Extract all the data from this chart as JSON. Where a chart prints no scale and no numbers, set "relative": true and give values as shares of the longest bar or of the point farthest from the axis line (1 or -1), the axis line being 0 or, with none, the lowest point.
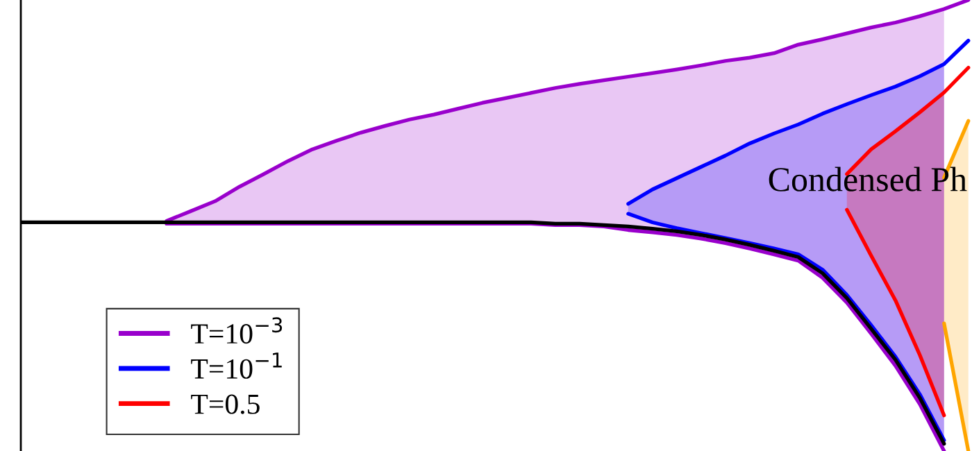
{
  "chart_data": {
    "type": "line",
    "categories": [
      null,
      null,
      null,
      null,
      null,
      null,
      null,
      null,
      null,
      null,
      null,
      null,
      null,
      null,
      null,
      null,
      null,
      null,
      null,
      null,
      null,
      null,
      null,
      null,
      null,
      null,
      null,
      null,
      null,
      null,
      null,
      null,
      null,
      null,
      null,
      null,
      null,
      null,
      null,
      null
    ],
    "relative": true,
    "series": [
      {
        "name": "T=10$^{−3}$",
        "color": "#9900cc",
        "values": [
          null,
          null,
          null,
          null,
          null,
          null,
          0.51,
          0.532,
          0.554,
          0.586,
          0.614,
          0.643,
          0.669,
          0.688,
          0.706,
          0.721,
          0.735,
          0.746,
          0.759,
          0.772,
          0.783,
          0.794,
          0.805,
          0.814,
          0.822,
          0.83,
          0.838,
          0.846,
          0.855,
          0.865,
          0.872,
          0.882,
          0.901,
          0.913,
          0.926,
          0.939,
          0.95,
          0.964,
          0.98,
          1.0
        ],
        "upper": [
          null,
          null,
          null,
          null,
          null,
          null,
          0.51,
          0.532,
          0.554,
          0.586,
          0.614,
          0.643,
          0.669,
          0.688,
          0.706,
          0.721,
          0.735,
          0.746,
          0.759,
          0.772,
          0.783,
          0.794,
          0.805,
          0.814,
          0.822,
          0.83,
          0.838,
          0.846,
          0.855,
          0.865,
          0.872,
          0.882,
          0.901,
          0.913,
          0.926,
          0.939,
          0.95,
          0.964,
          0.98,
          null
        ],
        "lower": [
          null,
          null,
          null,
          null,
          null,
          null,
          0.504,
          0.504,
          0.504,
          0.504,
          0.504,
          0.504,
          0.504,
          0.504,
          0.504,
          0.504,
          0.504,
          0.504,
          0.504,
          0.504,
          0.504,
          0.504,
          0.501,
          0.501,
          0.498,
          0.49,
          0.485,
          0.479,
          0.471,
          0.461,
          0.449,
          0.436,
          0.422,
          0.384,
          0.329,
          0.26,
          0.189,
          0.104,
          0.0,
          null
        ]
      },
      {
        "color": "#9900cc",
        "values": [
          null,
          null,
          null,
          null,
          null,
          null,
          0.504,
          0.504,
          0.504,
          0.504,
          0.504,
          0.504,
          0.504,
          0.504,
          0.504,
          0.504,
          0.504,
          0.504,
          0.504,
          0.504,
          0.504,
          0.504,
          0.501,
          0.501,
          0.498,
          0.49,
          0.485,
          0.479,
          0.471,
          0.461,
          0.449,
          0.436,
          0.422,
          0.384,
          0.329,
          0.26,
          0.189,
          0.104,
          0.0,
          null
        ]
      },
      {
        "name": "T=10$^{−1}$",
        "color": "#0000ff",
        "values": [
          null,
          null,
          null,
          null,
          null,
          null,
          null,
          null,
          null,
          null,
          null,
          null,
          null,
          null,
          null,
          null,
          null,
          null,
          null,
          null,
          null,
          null,
          null,
          null,
          null,
          0.548,
          0.58,
          0.605,
          0.63,
          0.655,
          0.682,
          0.704,
          0.724,
          0.748,
          0.769,
          0.789,
          0.808,
          0.831,
          0.858,
          0.91
        ],
        "upper": [
          null,
          null,
          null,
          null,
          null,
          null,
          null,
          null,
          null,
          null,
          null,
          null,
          null,
          null,
          null,
          null,
          null,
          null,
          null,
          null,
          null,
          null,
          null,
          null,
          null,
          0.548,
          0.58,
          0.605,
          0.63,
          0.655,
          0.682,
          0.704,
          0.724,
          0.748,
          0.769,
          0.789,
          0.808,
          0.831,
          0.858,
          null
        ],
        "lower": [
          null,
          null,
          null,
          null,
          null,
          null,
          null,
          null,
          null,
          null,
          null,
          null,
          null,
          null,
          null,
          null,
          null,
          null,
          null,
          null,
          null,
          null,
          null,
          null,
          null,
          0.526,
          0.507,
          0.494,
          0.483,
          0.472,
          0.461,
          0.449,
          0.436,
          0.402,
          0.346,
          0.279,
          0.209,
          0.126,
          0.024,
          null
        ]
      },
      {
        "color": "#0000ff",
        "values": [
          null,
          null,
          null,
          null,
          null,
          null,
          null,
          null,
          null,
          null,
          null,
          null,
          null,
          null,
          null,
          null,
          null,
          null,
          null,
          null,
          null,
          null,
          null,
          null,
          null,
          0.526,
          0.507,
          0.494,
          0.483,
          0.472,
          0.461,
          0.449,
          0.436,
          0.402,
          0.346,
          0.279,
          0.209,
          0.126,
          0.024,
          null
        ]
      },
      {
        "name": "T=0.5",
        "color": "#ff0000",
        "values": [
          null,
          null,
          null,
          null,
          null,
          null,
          null,
          null,
          null,
          null,
          null,
          null,
          null,
          null,
          null,
          null,
          null,
          null,
          null,
          null,
          null,
          null,
          null,
          null,
          null,
          null,
          null,
          null,
          null,
          null,
          null,
          null,
          null,
          null,
          0.614,
          0.669,
          0.709,
          0.751,
          0.795,
          0.85
        ],
        "upper": [
          null,
          null,
          null,
          null,
          null,
          null,
          null,
          null,
          null,
          null,
          null,
          null,
          null,
          null,
          null,
          null,
          null,
          null,
          null,
          null,
          null,
          null,
          null,
          null,
          null,
          null,
          null,
          null,
          null,
          null,
          null,
          null,
          null,
          null,
          0.614,
          0.669,
          0.709,
          0.751,
          0.795,
          null
        ],
        "lower": [
          null,
          null,
          null,
          null,
          null,
          null,
          null,
          null,
          null,
          null,
          null,
          null,
          null,
          null,
          null,
          null,
          null,
          null,
          null,
          null,
          null,
          null,
          null,
          null,
          null,
          null,
          null,
          null,
          null,
          null,
          null,
          null,
          null,
          null,
          0.535,
          0.433,
          0.334,
          0.213,
          0.079,
          null
        ]
      },
      {
        "color": "#ff0000",
        "values": [
          null,
          null,
          null,
          null,
          null,
          null,
          null,
          null,
          null,
          null,
          null,
          null,
          null,
          null,
          null,
          null,
          null,
          null,
          null,
          null,
          null,
          null,
          null,
          null,
          null,
          null,
          null,
          null,
          null,
          null,
          null,
          null,
          null,
          null,
          0.535,
          0.433,
          0.334,
          0.213,
          0.079,
          null
        ]
      },
      {
        "color": "#ffa500",
        "values": [
          null,
          null,
          null,
          null,
          null,
          null,
          null,
          null,
          null,
          null,
          null,
          null,
          null,
          null,
          null,
          null,
          null,
          null,
          null,
          null,
          null,
          null,
          null,
          null,
          null,
          null,
          null,
          null,
          null,
          null,
          null,
          null,
          null,
          null,
          null,
          null,
          null,
          null,
          0.606,
          0.732
        ],
        "upper": [
          null,
          null,
          null,
          null,
          null,
          null,
          null,
          null,
          null,
          null,
          null,
          null,
          null,
          null,
          null,
          null,
          null,
          null,
          null,
          null,
          null,
          null,
          null,
          null,
          null,
          null,
          null,
          null,
          null,
          null,
          null,
          null,
          null,
          null,
          null,
          null,
          null,
          null,
          0.606,
          0.732
        ],
        "lower": [
          null,
          null,
          null,
          null,
          null,
          null,
          null,
          null,
          null,
          null,
          null,
          null,
          null,
          null,
          null,
          null,
          null,
          null,
          null,
          null,
          null,
          null,
          null,
          null,
          null,
          null,
          null,
          null,
          null,
          null,
          null,
          null,
          null,
          null,
          null,
          null,
          null,
          null,
          0.283,
          0.0
        ]
      },
      {
        "color": "#ffa500",
        "values": [
          null,
          null,
          null,
          null,
          null,
          null,
          null,
          null,
          null,
          null,
          null,
          null,
          null,
          null,
          null,
          null,
          null,
          null,
          null,
          null,
          null,
          null,
          null,
          null,
          null,
          null,
          null,
          null,
          null,
          null,
          null,
          null,
          null,
          null,
          null,
          null,
          null,
          null,
          0.283,
          0.0
        ]
      },
      {
        "color": "#000000",
        "values": [
          0.507,
          0.507,
          0.507,
          0.507,
          0.507,
          0.507,
          0.507,
          0.507,
          0.507,
          0.507,
          0.507,
          0.507,
          0.507,
          0.507,
          0.507,
          0.507,
          0.507,
          0.507,
          0.507,
          0.507,
          0.507,
          0.507,
          0.504,
          0.504,
          0.501,
          0.498,
          0.493,
          0.487,
          0.479,
          0.469,
          0.457,
          0.444,
          0.43,
          0.394,
          0.339,
          0.271,
          0.202,
          0.118,
          0.016,
          null
        ]
      }
    ],
    "annotations": [
      "Condensed Ph"
    ],
    "legend": "bottom left",
    "marker": "none",
    "line_style": "solid"
  }
}
